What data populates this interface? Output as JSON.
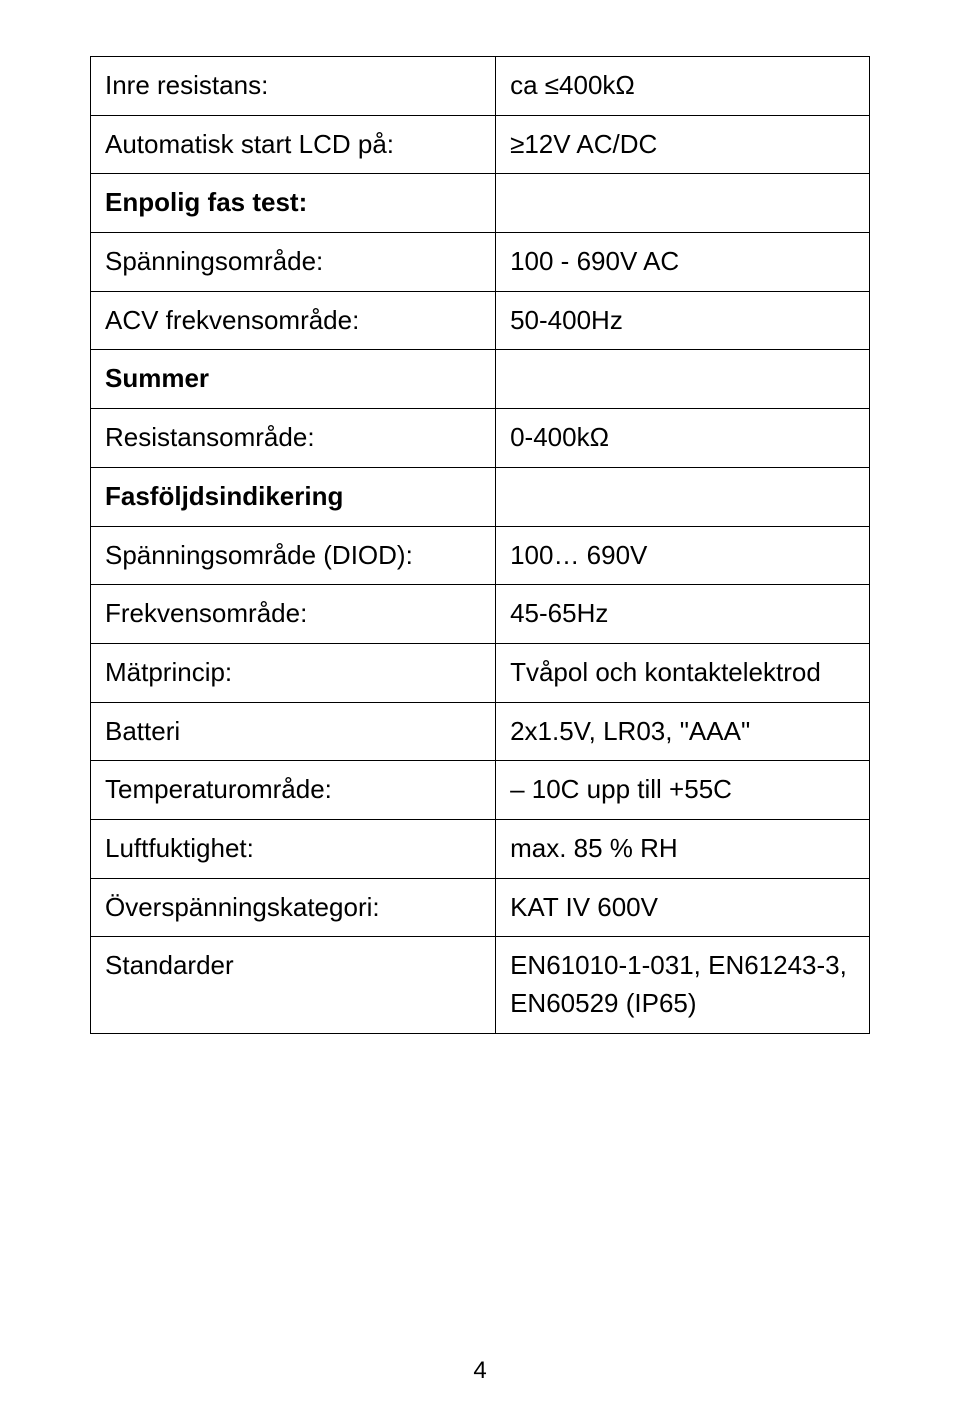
{
  "table": {
    "rows": [
      {
        "left": "Inre resistans:",
        "left_bold": false,
        "right": "ca ≤400kΩ"
      },
      {
        "left": "Automatisk start LCD på:",
        "left_bold": false,
        "right": "≥12V AC/DC"
      },
      {
        "left": "Enpolig fas test:",
        "left_bold": true,
        "right": ""
      },
      {
        "left": "Spänningsområde:",
        "left_bold": false,
        "right": "100 - 690V AC"
      },
      {
        "left": "ACV frekvensområde:",
        "left_bold": false,
        "right": "50-400Hz"
      },
      {
        "left": "Summer",
        "left_bold": true,
        "right": ""
      },
      {
        "left": "Resistansområde:",
        "left_bold": false,
        "right": "0-400kΩ"
      },
      {
        "left": "Fasföljdsindikering",
        "left_bold": true,
        "right": ""
      },
      {
        "left": "Spänningsområde (DIOD):",
        "left_bold": false,
        "right": "100… 690V"
      },
      {
        "left": "Frekvensområde:",
        "left_bold": false,
        "right": "45-65Hz"
      },
      {
        "left": "Mätprincip:",
        "left_bold": false,
        "right": "Tvåpol och kontaktelektrod"
      },
      {
        "left": "Batteri",
        "left_bold": false,
        "right": "2x1.5V, LR03, \"AAA\""
      },
      {
        "left": "Temperaturområde:",
        "left_bold": false,
        "right": "– 10C upp till +55C"
      },
      {
        "left": "Luftfuktighet:",
        "left_bold": false,
        "right": "max. 85 % RH"
      },
      {
        "left": "Överspänningskategori:",
        "left_bold": false,
        "right": "KAT IV 600V"
      },
      {
        "left": "Standarder",
        "left_bold": false,
        "right": "EN61010-1-031, EN61243-3, EN60529 (IP65)"
      }
    ]
  },
  "page_number": "4",
  "style": {
    "font_family": "Arial, Helvetica, sans-serif",
    "font_size_pt": 20,
    "border_color": "#000000",
    "background_color": "#ffffff",
    "text_color": "#000000"
  }
}
